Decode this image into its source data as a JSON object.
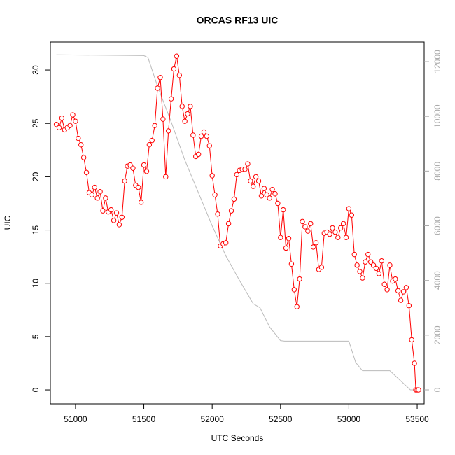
{
  "chart_data": {
    "type": "line",
    "title": "ORCAS RF13 UIC",
    "xlabel": "UTC Seconds",
    "ylabel": "UIC",
    "xlim": [
      50816,
      53551
    ],
    "xticks": [
      51000,
      51500,
      52000,
      52500,
      53000,
      53500
    ],
    "ylim": [
      -1.31,
      32.63
    ],
    "yticks": [
      0,
      5,
      10,
      15,
      20,
      25,
      30
    ],
    "y2lim": [
      -512,
      12717
    ],
    "y2ticks": [
      0,
      2000,
      4000,
      6000,
      8000,
      10000,
      12000
    ],
    "series": [
      {
        "color": "#ff0000",
        "markers": true,
        "x": [
          50860,
          50880,
          50900,
          50920,
          50940,
          50960,
          50980,
          51000,
          51020,
          51040,
          51060,
          51080,
          51100,
          51120,
          51140,
          51160,
          51180,
          51200,
          51220,
          51240,
          51260,
          51280,
          51300,
          51320,
          51340,
          51360,
          51380,
          51400,
          51420,
          51440,
          51460,
          51480,
          51500,
          51520,
          51540,
          51560,
          51580,
          51600,
          51620,
          51640,
          51660,
          51680,
          51700,
          51720,
          51740,
          51760,
          51780,
          51800,
          51820,
          51840,
          51860,
          51880,
          51900,
          51920,
          51940,
          51960,
          51980,
          52000,
          52020,
          52040,
          52060,
          52080,
          52100,
          52120,
          52140,
          52160,
          52180,
          52200,
          52220,
          52240,
          52260,
          52280,
          52300,
          52320,
          52340,
          52360,
          52380,
          52400,
          52420,
          52440,
          52460,
          52480,
          52500,
          52520,
          52540,
          52560,
          52580,
          52600,
          52620,
          52640,
          52660,
          52680,
          52700,
          52720,
          52740,
          52760,
          52780,
          52800,
          52820,
          52840,
          52860,
          52880,
          52900,
          52920,
          52940,
          52960,
          52980,
          53000,
          53020,
          53040,
          53060,
          53080,
          53100,
          53120,
          53140,
          53160,
          53180,
          53200,
          53220,
          53240,
          53260,
          53280,
          53300,
          53320,
          53340,
          53360,
          53380,
          53400,
          53420,
          53440,
          53460,
          53480,
          53490,
          53500,
          53510
        ],
        "values": [
          24.9,
          24.6,
          25.5,
          24.4,
          24.6,
          24.8,
          25.8,
          25.2,
          23.6,
          23.0,
          21.8,
          20.4,
          18.5,
          18.3,
          19.0,
          18.0,
          18.6,
          16.8,
          18.0,
          16.7,
          16.9,
          15.9,
          16.6,
          15.5,
          16.2,
          19.6,
          21.0,
          21.1,
          20.8,
          19.2,
          19.0,
          17.6,
          21.1,
          20.5,
          23.0,
          23.4,
          24.8,
          28.3,
          29.3,
          25.4,
          20.0,
          24.3,
          27.3,
          30.1,
          31.3,
          29.5,
          26.6,
          25.2,
          25.9,
          26.6,
          23.9,
          21.9,
          22.1,
          23.8,
          24.2,
          23.8,
          22.9,
          20.1,
          18.3,
          16.5,
          13.5,
          13.7,
          13.8,
          15.6,
          16.8,
          17.9,
          20.2,
          20.6,
          20.7,
          20.7,
          21.2,
          19.6,
          19.1,
          20.0,
          19.6,
          18.2,
          18.9,
          18.3,
          18.0,
          18.8,
          18.4,
          17.5,
          14.3,
          16.9,
          13.3,
          14.2,
          11.8,
          9.4,
          7.8,
          10.4,
          15.8,
          15.3,
          14.9,
          15.6,
          13.4,
          13.8,
          11.3,
          11.5,
          14.7,
          14.8,
          14.6,
          15.2,
          14.8,
          14.3,
          15.2,
          15.6,
          14.3,
          17.0,
          16.4,
          12.7,
          11.7,
          11.1,
          10.5,
          12.0,
          12.7,
          12.0,
          11.7,
          11.4,
          10.9,
          12.1,
          9.9,
          9.4,
          11.7,
          10.2,
          10.4,
          9.3,
          8.4,
          9.2,
          9.6,
          7.9,
          4.7,
          2.5,
          0,
          0,
          0
        ]
      },
      {
        "color": "#bbbbbb",
        "axis": "y2",
        "markers": false,
        "x": [
          50860,
          51500,
          51530,
          51600,
          51700,
          51800,
          51900,
          52000,
          52100,
          52200,
          52300,
          52350,
          52420,
          52500,
          52530,
          53000,
          53050,
          53100,
          53300,
          53450,
          53510
        ],
        "values": [
          12250,
          12220,
          12150,
          11100,
          9800,
          8400,
          7200,
          6000,
          4900,
          4000,
          3150,
          3000,
          2300,
          1800,
          1780,
          1780,
          1000,
          700,
          700,
          0,
          0
        ]
      }
    ]
  }
}
